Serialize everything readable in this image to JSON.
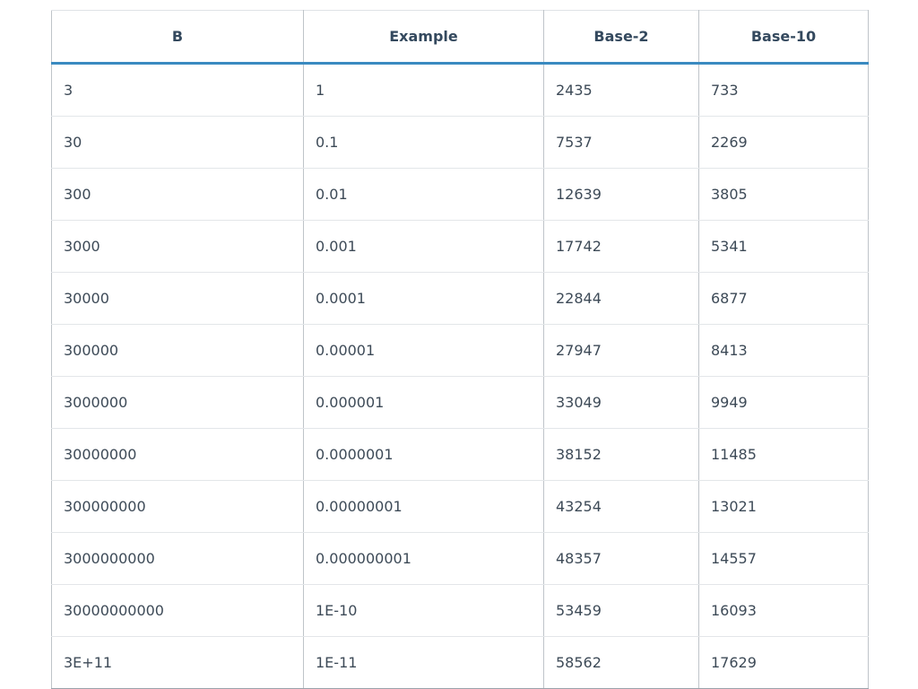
{
  "table": {
    "headers": [
      "B",
      "Example",
      "Base-2",
      "Base-10"
    ],
    "rows": [
      [
        "3",
        "1",
        "2435",
        "733"
      ],
      [
        "30",
        "0.1",
        "7537",
        "2269"
      ],
      [
        "300",
        "0.01",
        "12639",
        "3805"
      ],
      [
        "3000",
        "0.001",
        "17742",
        "5341"
      ],
      [
        "30000",
        "0.0001",
        "22844",
        "6877"
      ],
      [
        "300000",
        "0.00001",
        "27947",
        "8413"
      ],
      [
        "3000000",
        "0.000001",
        "33049",
        "9949"
      ],
      [
        "30000000",
        "0.0000001",
        "38152",
        "11485"
      ],
      [
        "300000000",
        "0.00000001",
        "43254",
        "13021"
      ],
      [
        "3000000000",
        "0.000000001",
        "48357",
        "14557"
      ],
      [
        "30000000000",
        "1E-10",
        "53459",
        "16093"
      ],
      [
        "3E+11",
        "1E-11",
        "58562",
        "17629"
      ]
    ]
  },
  "colors": {
    "header_rule": "#3a8ac0",
    "header_text": "#34495e",
    "cell_text": "#3d4a57",
    "grid_line": "#bfc4c9"
  }
}
